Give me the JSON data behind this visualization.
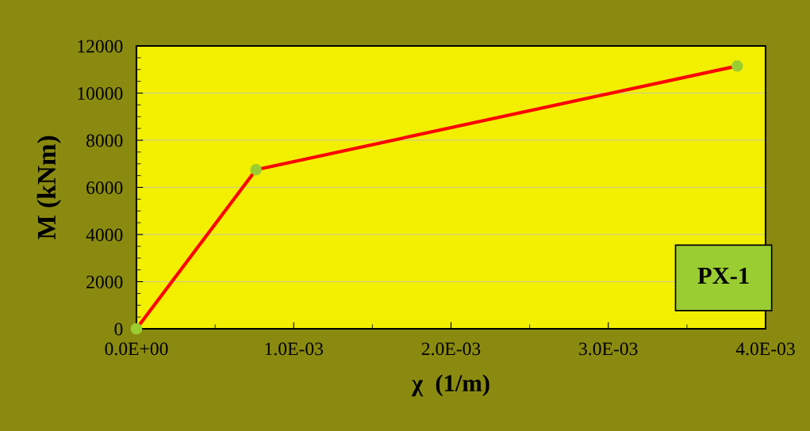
{
  "chart_data": {
    "type": "line",
    "xlabel": "χ  (1/m)",
    "ylabel": "M (kNm)",
    "x": [
      0,
      0.00076,
      0.00382
    ],
    "series": [
      {
        "color": "#ff0000",
        "values": [
          0,
          6750,
          11150
        ]
      },
      {
        "type": "scatter",
        "color": "#9acd32",
        "values": [
          0,
          6750,
          11150
        ]
      }
    ],
    "xlim": [
      0,
      0.004
    ],
    "ylim": [
      0,
      12000
    ],
    "xticks": [
      {
        "value": 0,
        "label": "0.0E+00"
      },
      {
        "value": 0.001,
        "label": "1.0E-03"
      },
      {
        "value": 0.002,
        "label": "2.0E-03"
      },
      {
        "value": 0.003,
        "label": "3.0E-03"
      },
      {
        "value": 0.004,
        "label": "4.0E-03"
      }
    ],
    "yticks": [
      0,
      2000,
      4000,
      6000,
      8000,
      10000,
      12000
    ],
    "grid": "y",
    "line_style": "solid",
    "annotations": [
      "PX-1"
    ]
  }
}
